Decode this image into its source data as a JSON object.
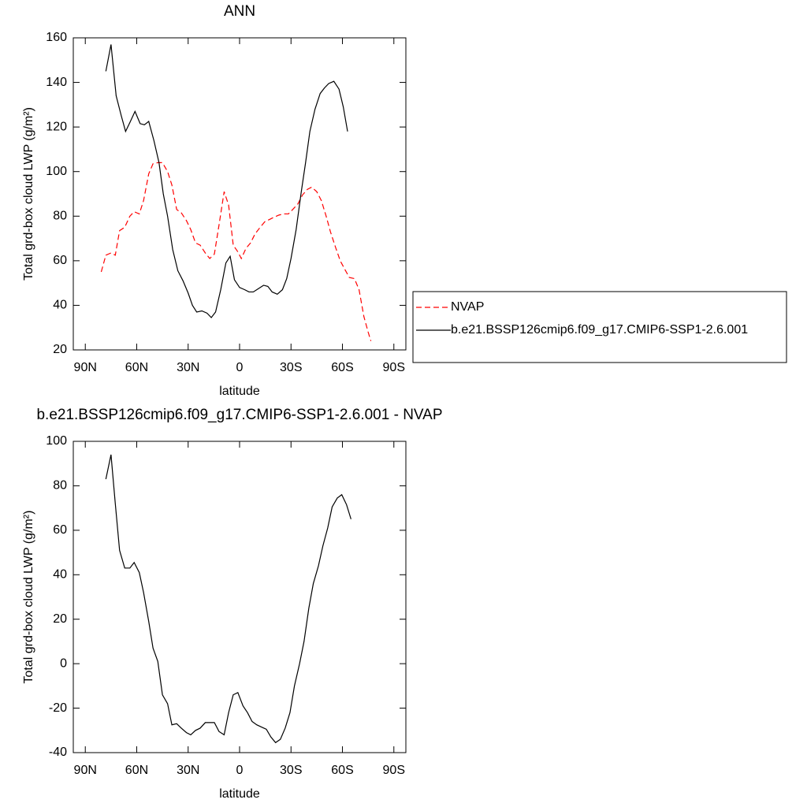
{
  "chart_data": [
    {
      "type": "line",
      "title": "ANN",
      "x_label": "latitude",
      "y_label": "Total grd-box cloud LWP (g/m²)",
      "xlim": [
        97,
        -97
      ],
      "xticks": [
        {
          "value": 90,
          "label": "90N"
        },
        {
          "value": 60,
          "label": "60N"
        },
        {
          "value": 30,
          "label": "30N"
        },
        0,
        {
          "value": -30,
          "label": "30S"
        },
        {
          "value": -60,
          "label": "60S"
        },
        {
          "value": -90,
          "label": "90S"
        }
      ],
      "ylim": [
        20,
        160
      ],
      "yticks": [
        20,
        40,
        60,
        80,
        100,
        120,
        140,
        160
      ],
      "legend": "right",
      "series": [
        {
          "name": "NVAP",
          "color": "#ff0000",
          "dash": "dashed",
          "x": [
            80.7,
            78,
            75,
            72.5,
            70,
            67,
            64,
            61.5,
            58.5,
            56,
            53,
            50.5,
            47.7,
            45,
            42,
            39.5,
            36.7,
            34,
            31,
            28.5,
            25.7,
            23,
            20,
            17.4,
            14.7,
            12,
            9,
            6.4,
            3.7,
            1,
            -1,
            -3.7,
            -6.4,
            -9,
            -12,
            -14.7,
            -17.4,
            -20,
            -23,
            -25.7,
            -28.5,
            -31,
            -34,
            -36.7,
            -39.5,
            -42,
            -45,
            -47.7,
            -50.5,
            -53,
            -56,
            -58.7,
            -61.5,
            -64,
            -67,
            -69.7,
            -72.5,
            -75,
            -76.6
          ],
          "values": [
            55,
            62.5,
            63.5,
            62.5,
            73.5,
            75,
            80,
            82,
            81,
            87,
            99,
            103.5,
            104,
            104,
            100,
            94,
            83,
            81.5,
            78,
            74,
            68,
            67,
            63.5,
            61,
            63,
            76,
            91,
            85,
            67,
            64,
            61,
            65.5,
            68,
            72,
            75,
            77.5,
            78.5,
            79.5,
            80.5,
            81,
            81,
            83,
            85.5,
            89.5,
            92,
            93,
            91,
            87,
            80,
            73,
            66,
            60,
            56,
            52.5,
            52,
            47,
            35,
            28,
            24
          ]
        },
        {
          "name": "b.e21.BSSP126cmip6.f09_g17.CMIP6-SSP1-2.6.001",
          "color": "#000000",
          "dash": "solid",
          "x": [
            78,
            75,
            72,
            69,
            66.5,
            64,
            61,
            58,
            55.5,
            53,
            50,
            47,
            44.5,
            42,
            39,
            36,
            33,
            30,
            27.5,
            25,
            22,
            19,
            16.5,
            14,
            11,
            8,
            5.5,
            3,
            0,
            -3,
            -5.5,
            -8,
            -11,
            -14,
            -16.5,
            -19,
            -22,
            -25,
            -27.5,
            -30,
            -33,
            -36,
            -38.5,
            -41,
            -44,
            -47,
            -49.5,
            -52,
            -55,
            -58,
            -60.5,
            -63
          ],
          "values": [
            145,
            157,
            134,
            125,
            118,
            122,
            127,
            121.5,
            121,
            122.5,
            114,
            104,
            90,
            80,
            65,
            55.5,
            51,
            45.5,
            40,
            37,
            37.5,
            36.5,
            34.5,
            37,
            47,
            59,
            62,
            51.5,
            48,
            47,
            46,
            46,
            47.5,
            49,
            48.5,
            46,
            45,
            47,
            52,
            61,
            74,
            91,
            104,
            118,
            128,
            135,
            137.5,
            139.5,
            140.5,
            137,
            129,
            118
          ]
        }
      ]
    },
    {
      "type": "line",
      "title": "b.e21.BSSP126cmip6.f09_g17.CMIP6-SSP1-2.6.001 - NVAP",
      "x_label": "latitude",
      "y_label": "Total grd-box cloud LWP (g/m²)",
      "xlim": [
        97,
        -97
      ],
      "xticks": [
        {
          "value": 90,
          "label": "90N"
        },
        {
          "value": 60,
          "label": "60N"
        },
        {
          "value": 30,
          "label": "30N"
        },
        0,
        {
          "value": -30,
          "label": "30S"
        },
        {
          "value": -60,
          "label": "60S"
        },
        {
          "value": -90,
          "label": "90S"
        }
      ],
      "ylim": [
        -40,
        100
      ],
      "yticks": [
        -40,
        -20,
        0,
        20,
        40,
        60,
        80,
        100
      ],
      "series": [
        {
          "color": "#000000",
          "dash": "solid",
          "x": [
            78,
            75,
            72.5,
            70,
            67,
            64,
            61.5,
            58.5,
            56,
            53,
            50.5,
            47.7,
            45,
            42,
            39.5,
            36.7,
            34,
            31,
            28.5,
            25.7,
            23,
            20,
            17.4,
            14.7,
            12,
            9,
            6.4,
            3.7,
            1,
            -2,
            -4.6,
            -7.3,
            -10,
            -12.8,
            -15.6,
            -18.3,
            -21,
            -23.8,
            -26.6,
            -29.4,
            -32,
            -35,
            -37.6,
            -40.4,
            -43,
            -46,
            -48.6,
            -51.4,
            -54,
            -57,
            -59.6,
            -62.4,
            -65
          ],
          "values": [
            83,
            94,
            72,
            51,
            43,
            43,
            45.5,
            41,
            32,
            19,
            7,
            1,
            -14,
            -18,
            -27.5,
            -27,
            -29,
            -31,
            -32,
            -30,
            -29,
            -26.5,
            -26.5,
            -26.5,
            -30.5,
            -32,
            -22,
            -14,
            -13,
            -19,
            -22,
            -26,
            -27.5,
            -28.5,
            -29.5,
            -33,
            -35.5,
            -34,
            -29,
            -22,
            -10,
            0,
            10,
            25,
            36,
            44,
            53,
            61,
            70.5,
            74.5,
            76,
            71.5,
            65
          ]
        }
      ]
    }
  ]
}
